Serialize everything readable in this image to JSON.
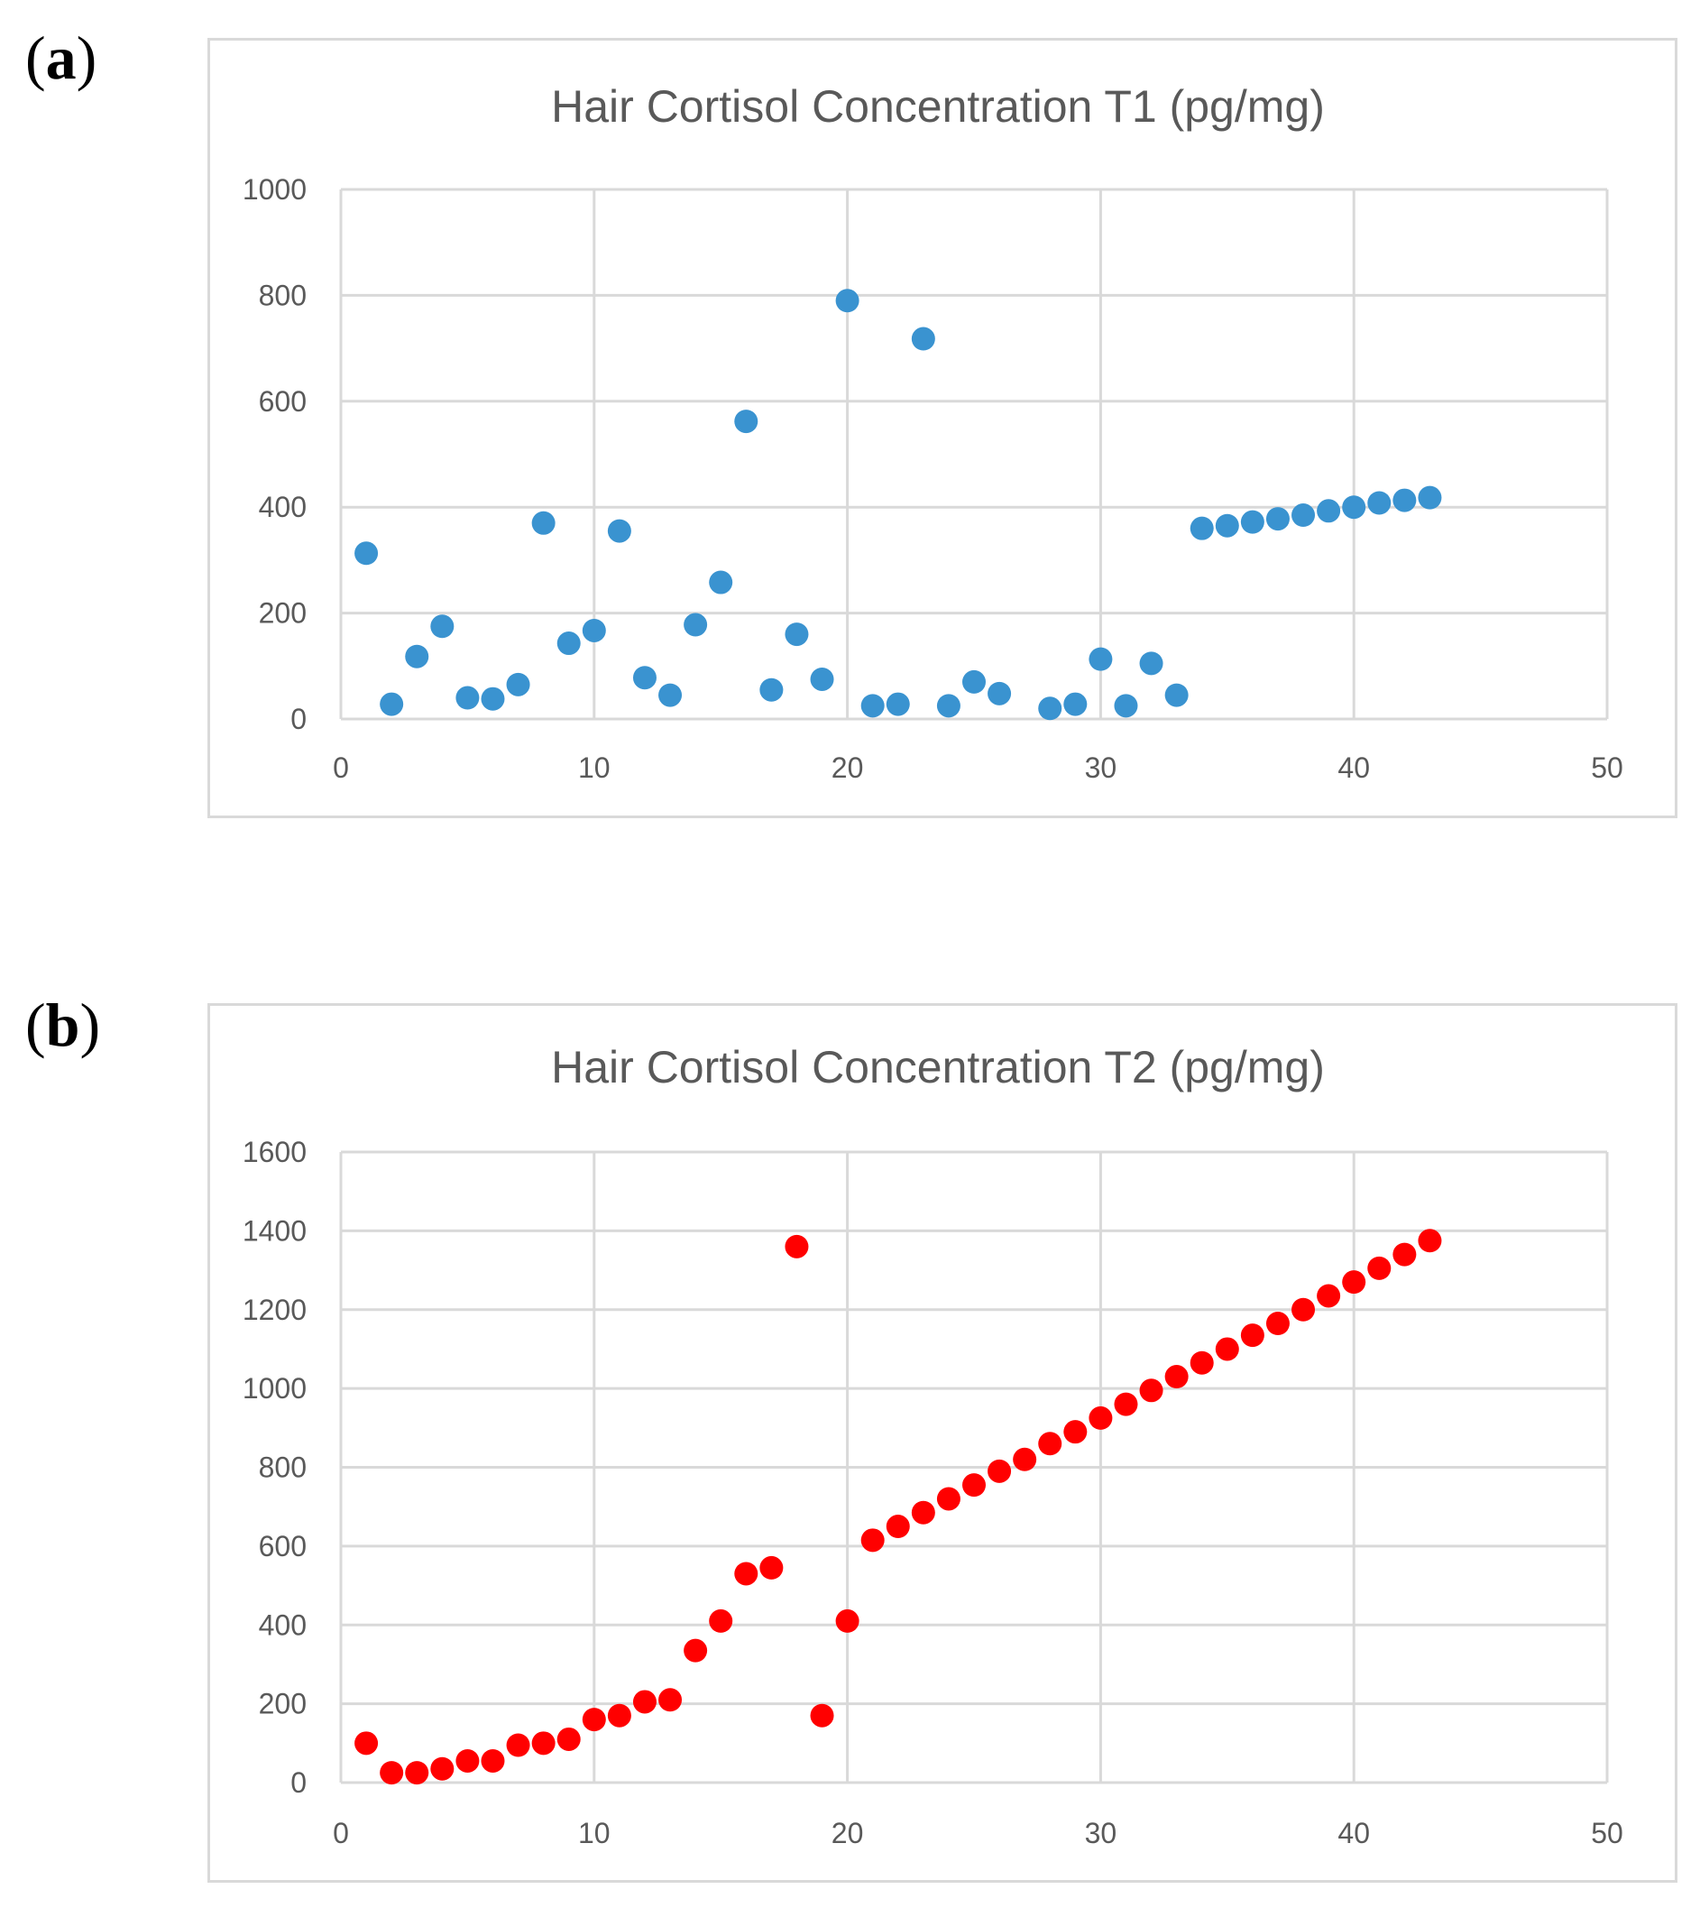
{
  "panels": [
    {
      "paren_open": "(",
      "letter": "a",
      "paren_close": ")"
    },
    {
      "paren_open": "(",
      "letter": "b",
      "paren_close": ")"
    }
  ],
  "colors": {
    "series_t1": "#3a93d0",
    "series_t2": "#ff0000",
    "grid": "#d9d9d9",
    "text": "#595959"
  },
  "chart_data": [
    {
      "type": "scatter",
      "title": "Hair Cortisol Concentration T1 (pg/mg)",
      "xlabel": "",
      "ylabel": "",
      "xlim": [
        0,
        50
      ],
      "ylim": [
        0,
        1000
      ],
      "xticks": [
        0,
        10,
        20,
        30,
        40,
        50
      ],
      "yticks": [
        0,
        200,
        400,
        600,
        800,
        1000
      ],
      "grid": true,
      "series": [
        {
          "name": "T1",
          "x": [
            1,
            2,
            3,
            4,
            5,
            6,
            7,
            8,
            9,
            10,
            11,
            12,
            13,
            14,
            15,
            16,
            17,
            18,
            19,
            20,
            21,
            22,
            23,
            24,
            25,
            26,
            28,
            29,
            30,
            31,
            32,
            33,
            34,
            35,
            36,
            37,
            38,
            39,
            40,
            41,
            42,
            43
          ],
          "y": [
            313,
            28,
            118,
            175,
            40,
            38,
            65,
            370,
            143,
            167,
            355,
            78,
            45,
            178,
            258,
            562,
            55,
            160,
            75,
            790,
            25,
            28,
            718,
            25,
            70,
            48,
            20,
            28,
            113,
            25,
            105,
            45,
            360,
            365,
            372,
            378,
            385,
            393,
            400,
            408,
            413,
            418
          ]
        }
      ]
    },
    {
      "type": "scatter",
      "title": "Hair Cortisol Concentration T2 (pg/mg)",
      "xlabel": "",
      "ylabel": "",
      "xlim": [
        0,
        50
      ],
      "ylim": [
        0,
        1600
      ],
      "xticks": [
        0,
        10,
        20,
        30,
        40,
        50
      ],
      "yticks": [
        0,
        200,
        400,
        600,
        800,
        1000,
        1200,
        1400,
        1600
      ],
      "grid": true,
      "series": [
        {
          "name": "T2",
          "x": [
            1,
            2,
            3,
            4,
            5,
            6,
            7,
            8,
            9,
            10,
            11,
            12,
            13,
            14,
            15,
            16,
            17,
            18,
            19,
            20,
            21,
            22,
            23,
            24,
            25,
            26,
            27,
            28,
            29,
            30,
            31,
            32,
            33,
            34,
            35,
            36,
            37,
            38,
            39,
            40,
            41,
            42,
            43
          ],
          "y": [
            100,
            25,
            25,
            35,
            55,
            55,
            95,
            100,
            110,
            160,
            170,
            205,
            210,
            335,
            410,
            530,
            545,
            1360,
            170,
            410,
            615,
            650,
            685,
            720,
            755,
            790,
            820,
            860,
            890,
            925,
            960,
            995,
            1030,
            1065,
            1100,
            1135,
            1165,
            1200,
            1235,
            1270,
            1305,
            1340,
            1375
          ]
        }
      ]
    }
  ]
}
